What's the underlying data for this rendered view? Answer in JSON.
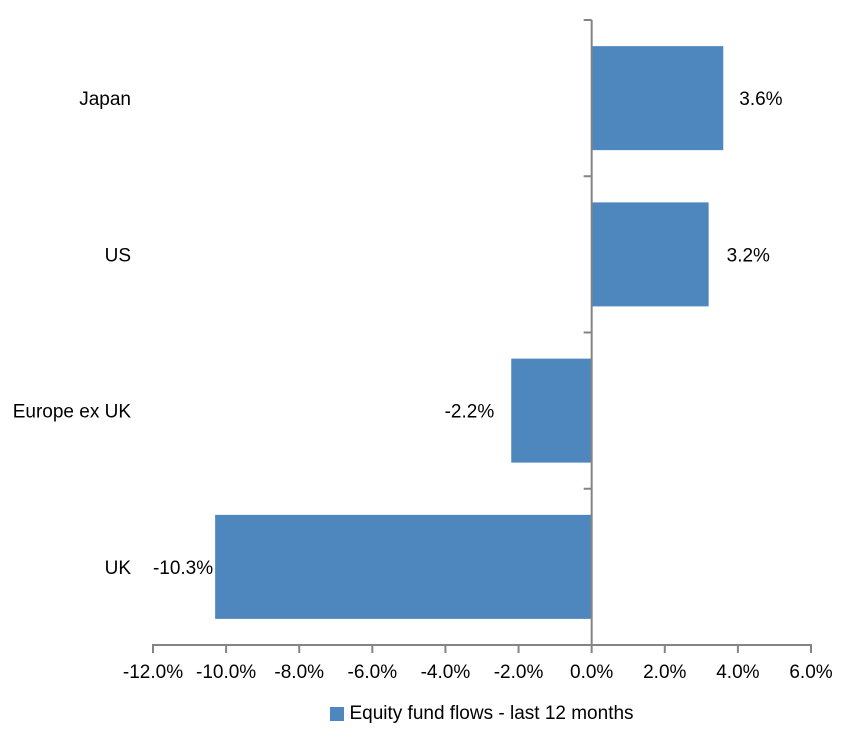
{
  "colors": {
    "bar": "#4E86BE",
    "axis": "#848484",
    "text": "#000000",
    "background": "#FFFFFF"
  },
  "chart_data": {
    "type": "bar",
    "orientation": "horizontal",
    "categories": [
      "Japan",
      "US",
      "Europe ex UK",
      "UK"
    ],
    "values": [
      3.6,
      3.2,
      -2.2,
      -10.3
    ],
    "data_labels": [
      "3.6%",
      "3.2%",
      "-2.2%",
      "-10.3%"
    ],
    "xlabel": "",
    "ylabel": "",
    "xlim": [
      -12,
      6
    ],
    "x_ticks": [
      -12,
      -10,
      -8,
      -6,
      -4,
      -2,
      0,
      2,
      4,
      6
    ],
    "x_tick_labels": [
      "-12.0%",
      "-10.0%",
      "-8.0%",
      "-6.0%",
      "-4.0%",
      "-2.0%",
      "0.0%",
      "2.0%",
      "4.0%",
      "6.0%"
    ],
    "grid": false,
    "legend": {
      "position": "bottom",
      "label": "Equity fund flows - last 12 months"
    }
  }
}
